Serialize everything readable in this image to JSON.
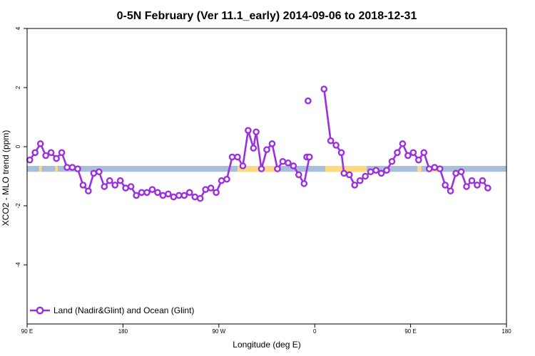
{
  "chart_data": {
    "type": "line",
    "title": "0-5N February (Ver 11.1_early)   2014-09-06 to 2018-12-31",
    "xlabel": "Longitude (deg E)",
    "ylabel": "XCO2 - MLO trend (ppm)",
    "xlim": [
      90,
      450
    ],
    "ylim": [
      -6,
      4
    ],
    "x_ticks": [
      {
        "value": 90,
        "label": "90 E"
      },
      {
        "value": 162,
        "label": "180"
      },
      {
        "value": 234,
        "label": "90 W"
      },
      {
        "value": 306,
        "label": "0"
      },
      {
        "value": 378,
        "label": "90 E"
      },
      {
        "value": 450,
        "label": "180"
      }
    ],
    "y_ticks": [
      {
        "value": 4,
        "label": "4"
      },
      {
        "value": 2,
        "label": "2"
      },
      {
        "value": 0,
        "label": "0"
      },
      {
        "value": -2,
        "label": "-2"
      },
      {
        "value": -4,
        "label": "-4"
      }
    ],
    "legend_position": "bottom-left",
    "band": {
      "y_range": [
        -0.85,
        -0.65
      ],
      "ocean_color": "#a8bedb",
      "land_color": "#ffd980",
      "land_segments": [
        [
          99,
          101
        ],
        [
          111,
          113
        ],
        [
          248,
          280
        ],
        [
          314,
          345
        ],
        [
          383,
          386
        ],
        [
          393,
          400
        ]
      ]
    },
    "series": [
      {
        "name": "Land (Nadir&Glint) and Ocean (Glint)",
        "color": "#9b30e0",
        "segments": [
          [
            [
              92,
              -0.45
            ],
            [
              96,
              -0.2
            ],
            [
              100,
              0.1
            ],
            [
              104,
              -0.3
            ],
            [
              108,
              -0.2
            ],
            [
              112,
              -0.4
            ],
            [
              116,
              -0.2
            ],
            [
              120,
              -0.7
            ],
            [
              124,
              -0.7
            ],
            [
              128,
              -0.75
            ],
            [
              132,
              -1.3
            ],
            [
              136,
              -1.5
            ],
            [
              140,
              -0.9
            ],
            [
              144,
              -0.85
            ],
            [
              148,
              -1.35
            ],
            [
              152,
              -1.15
            ],
            [
              156,
              -1.3
            ],
            [
              160,
              -1.15
            ],
            [
              164,
              -1.4
            ],
            [
              168,
              -1.35
            ],
            [
              172,
              -1.65
            ],
            [
              176,
              -1.55
            ],
            [
              180,
              -1.55
            ],
            [
              184,
              -1.45
            ],
            [
              188,
              -1.55
            ],
            [
              192,
              -1.65
            ],
            [
              196,
              -1.6
            ],
            [
              200,
              -1.7
            ],
            [
              204,
              -1.65
            ],
            [
              208,
              -1.65
            ],
            [
              212,
              -1.55
            ],
            [
              216,
              -1.7
            ],
            [
              220,
              -1.75
            ],
            [
              224,
              -1.45
            ],
            [
              228,
              -1.4
            ],
            [
              232,
              -1.55
            ],
            [
              236,
              -1.15
            ],
            [
              240,
              -1.1
            ],
            [
              244,
              -0.35
            ],
            [
              248,
              -0.35
            ],
            [
              252,
              -0.65
            ],
            [
              256,
              0.55
            ],
            [
              260,
              -0.05
            ],
            [
              262,
              0.5
            ],
            [
              266,
              -0.75
            ],
            [
              270,
              -0.1
            ],
            [
              274,
              0.1
            ],
            [
              278,
              -0.75
            ],
            [
              282,
              -0.5
            ],
            [
              286,
              -0.55
            ],
            [
              290,
              -0.65
            ],
            [
              294,
              -0.95
            ],
            [
              298,
              -1.25
            ],
            [
              302,
              -0.35
            ]
          ],
          [
            [
              300,
              -0.35
            ],
            [
              302,
              -0.35
            ]
          ],
          [
            [
              301,
              1.55
            ]
          ],
          [
            [
              313,
              1.95
            ],
            [
              318,
              0.2
            ],
            [
              322,
              0.05
            ],
            [
              326,
              -0.2
            ],
            [
              328,
              -0.9
            ],
            [
              332,
              -0.95
            ],
            [
              336,
              -1.3
            ],
            [
              340,
              -1.15
            ],
            [
              344,
              -1.0
            ],
            [
              348,
              -0.85
            ],
            [
              352,
              -0.8
            ],
            [
              356,
              -0.9
            ],
            [
              360,
              -0.8
            ],
            [
              364,
              -0.5
            ],
            [
              368,
              -0.2
            ],
            [
              372,
              0.1
            ],
            [
              376,
              -0.3
            ],
            [
              380,
              -0.2
            ],
            [
              384,
              -0.45
            ],
            [
              388,
              -0.2
            ],
            [
              392,
              -0.75
            ],
            [
              396,
              -0.7
            ],
            [
              400,
              -0.75
            ],
            [
              404,
              -1.3
            ],
            [
              408,
              -1.5
            ],
            [
              412,
              -0.9
            ],
            [
              416,
              -0.85
            ],
            [
              420,
              -1.35
            ],
            [
              424,
              -1.15
            ],
            [
              428,
              -1.3
            ],
            [
              432,
              -1.15
            ],
            [
              436,
              -1.4
            ]
          ]
        ]
      }
    ]
  }
}
